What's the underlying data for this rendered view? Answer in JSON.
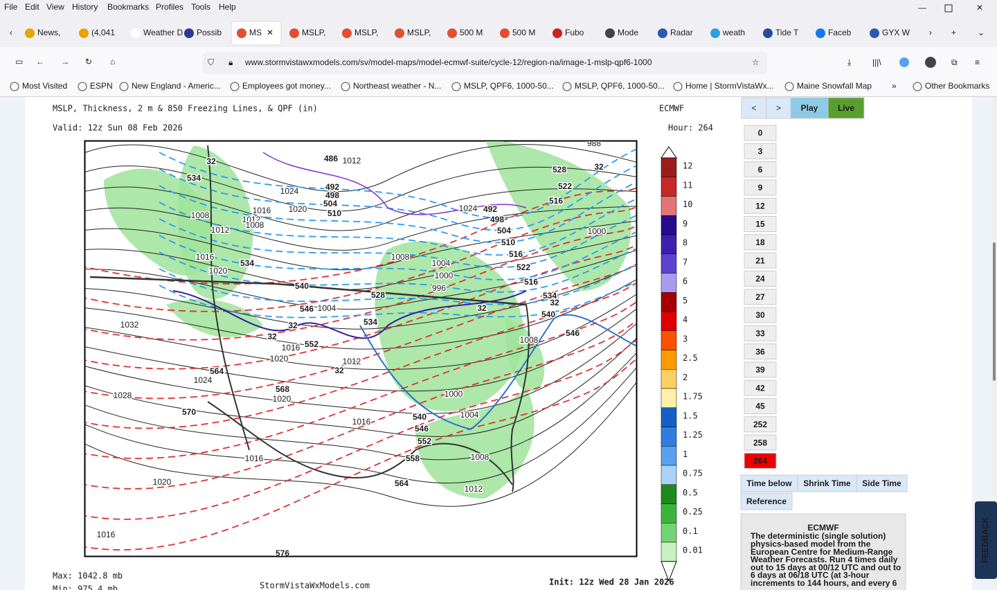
{
  "browser": {
    "menu": [
      "File",
      "Edit",
      "View",
      "History",
      "Bookmarks",
      "Profiles",
      "Tools",
      "Help"
    ],
    "tabs": [
      "News,",
      "(4,041",
      "Weather D",
      "Possib",
      "MS",
      "MSLP,",
      "MSLP,",
      "MSLP,",
      "500 M",
      "500 M",
      "Fubo",
      "Mode",
      "Radar",
      "weath",
      "Tide T",
      "Faceb",
      "GYX W"
    ],
    "url": "www.stormvistawxmodels.com/sv/model-maps/model-ecmwf-suite/cycle-12/region-na/image-1-mslp-qpf6-1000",
    "bookmarks": [
      "Most Visited",
      "ESPN",
      "New England - Americ...",
      "Employees got money...",
      "Northeast weather - N...",
      "MSLP, QPF6, 1000-50...",
      "MSLP, QPF6, 1000-50...",
      "Home | StormVistaWx...",
      "Maine Snowfall Map",
      "Other Bookmarks"
    ]
  },
  "map": {
    "title": "MSLP, Thickness, 2 m & 850 Freezing Lines, & QPF (in)",
    "model": "ECMWF",
    "valid": "Valid: 12z Sun 08 Feb 2026",
    "hour": "Hour: 264",
    "labels": {
      "isobars": [
        "1012",
        "1024",
        "1020",
        "1016",
        "1012",
        "1008",
        "1008",
        "1012",
        "1016",
        "1020",
        "1032",
        "1024",
        "1028",
        "1004",
        "1008",
        "1004",
        "1000",
        "996",
        "1016",
        "1020",
        "1020",
        "1012",
        "1016",
        "1016",
        "1020",
        "1016",
        "1000",
        "1004",
        "1008",
        "1012",
        "1008",
        "1024",
        "1000",
        "988"
      ],
      "warm_thickness": [
        "546",
        "552",
        "564",
        "568",
        "570",
        "546",
        "552",
        "558",
        "564",
        "546",
        "576"
      ],
      "cold_thickness": [
        "534",
        "534",
        "540",
        "528",
        "534",
        "540",
        "528",
        "522",
        "516",
        "510",
        "510",
        "516",
        "522",
        "516",
        "534",
        "540"
      ],
      "upper": [
        "486",
        "492",
        "498",
        "504",
        "492",
        "498",
        "504",
        "32",
        "32",
        "32",
        "32",
        "32",
        "32",
        "32"
      ]
    },
    "colorbar": {
      "labels": [
        "12",
        "11",
        "10",
        "9",
        "8",
        "7",
        "6",
        "5",
        "4",
        "3",
        "2.5",
        "2",
        "1.75",
        "1.5",
        "1.25",
        "1",
        "0.75",
        "0.5",
        "0.25",
        "0.1",
        "0.01"
      ],
      "colors": [
        "#9b1c1c",
        "#c62828",
        "#e57373",
        "#2a0a8c",
        "#3c1fb0",
        "#5b43d0",
        "#a99af0",
        "#a50000",
        "#e00000",
        "#ff5000",
        "#ff9a00",
        "#ffd060",
        "#fff2a8",
        "#1560c8",
        "#2e7ee0",
        "#5aa0f0",
        "#a8d4f8",
        "#1e8a1e",
        "#3cb43c",
        "#74d474",
        "#c8f0c0"
      ]
    },
    "max": "Max: 1042.8 mb",
    "min": "Min: 975.4 mb",
    "site": "StormVistaWxModels.com",
    "init": "Init: 12z Wed 28 Jan 2026"
  },
  "controls": {
    "prev": "<",
    "next": ">",
    "play": "Play",
    "live": "Live",
    "hours": [
      0,
      3,
      6,
      9,
      12,
      15,
      18,
      21,
      24,
      27,
      30,
      33,
      36,
      39,
      42,
      45,
      252,
      258,
      264
    ],
    "selected_hour": 264,
    "options": [
      "Time below",
      "Shrink Time",
      "Side Time",
      "Reference"
    ],
    "info_title": "ECMWF",
    "info_lines": [
      "The deterministic (single solution)",
      "physics-based model from the",
      "European Centre for Medium-Range",
      "Weather Forecasts. Run 4 times daily",
      "out to 15 days at 00/12 UTC and out to",
      "6 days at 06/18 UTC (at 3-hour",
      "increments to 144 hours, and every 6"
    ],
    "feedback": "FEEDBACK"
  }
}
